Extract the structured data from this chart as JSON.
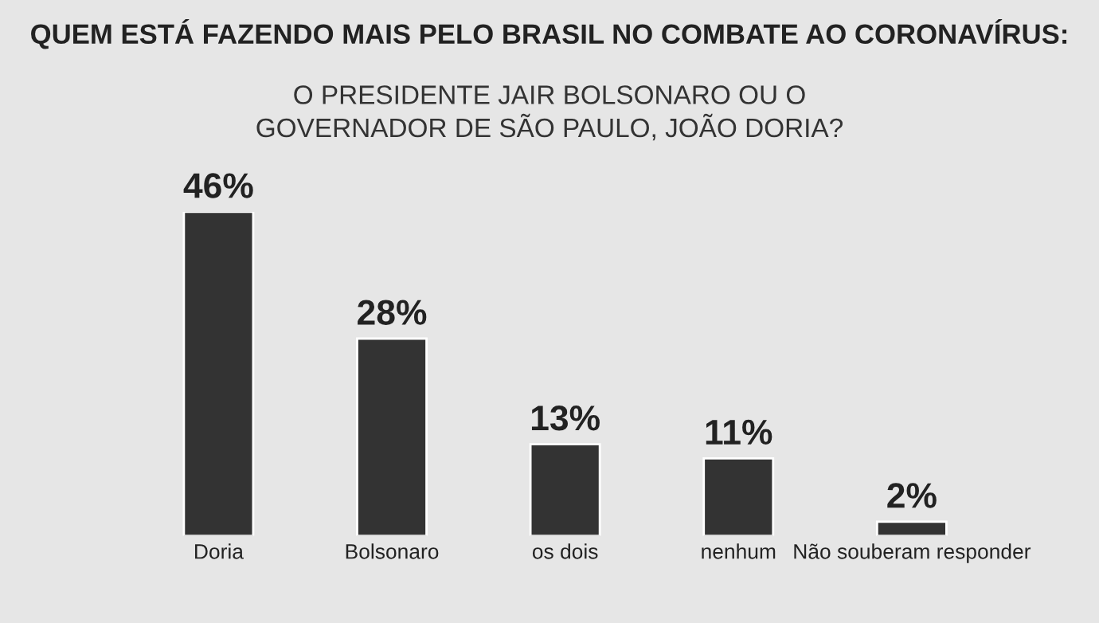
{
  "chart_data": {
    "type": "bar",
    "title": "QUEM ESTÁ FAZENDO MAIS PELO BRASIL NO COMBATE AO CORONAVÍRUS:",
    "subtitle": "O PRESIDENTE JAIR BOLSONARO OU O\nGOVERNADOR DE SÃO PAULO, JOÃO DORIA?",
    "categories": [
      "Doria",
      "Bolsonaro",
      "os dois",
      "nenhum",
      "Não souberam responder"
    ],
    "values": [
      46,
      28,
      13,
      11,
      2
    ],
    "value_labels": [
      "46%",
      "28%",
      "13%",
      "11%",
      "2%"
    ],
    "color": "#333333",
    "grid": false,
    "legend": false
  }
}
